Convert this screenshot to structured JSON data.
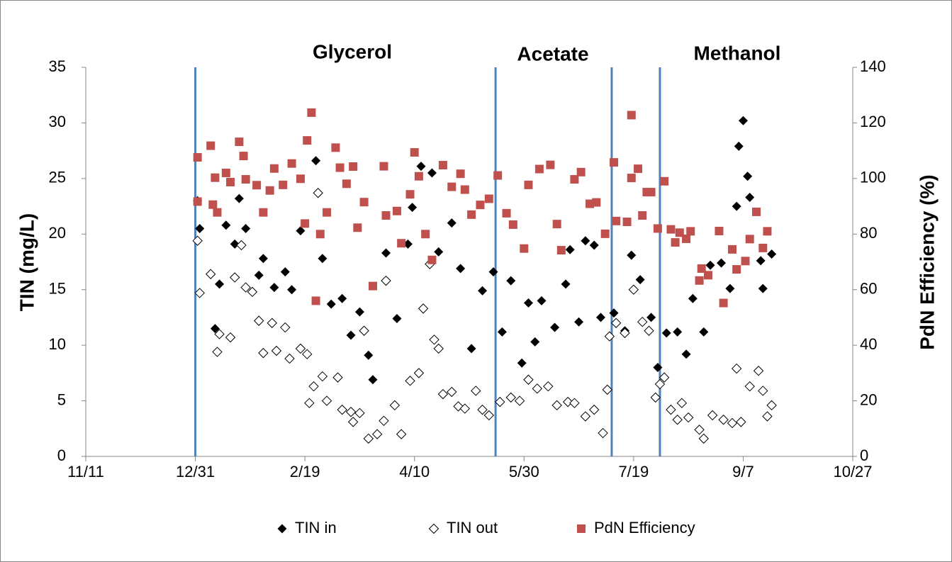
{
  "chart_data": {
    "type": "scatter",
    "y_label": "TIN (mg/L)",
    "y2_label": "PdN Efficiency (%)",
    "annotations": [
      "Glycerol",
      "Acetate",
      "Methanol"
    ],
    "phase_lines": [
      "12/31",
      "5/17",
      "7/9",
      "7/31"
    ],
    "phase_line_color": "#4f81bd",
    "xlim": [
      "11/11",
      "10/27"
    ],
    "xticks": [
      "11/11",
      "12/31",
      "2/19",
      "4/10",
      "5/30",
      "7/19",
      "9/7",
      "10/27"
    ],
    "ylim": [
      0,
      35
    ],
    "yticks": [
      0,
      5,
      10,
      15,
      20,
      25,
      30,
      35
    ],
    "y2lim": [
      0,
      140
    ],
    "y2ticks": [
      0,
      20,
      40,
      60,
      80,
      100,
      120,
      140
    ],
    "grid": false,
    "legend": "bottom",
    "series": [
      {
        "name": "TIN in",
        "color": "#000000",
        "marker": "diamond",
        "x": [
          "1/1",
          "1/2",
          "1/9",
          "1/11",
          "1/14",
          "1/18",
          "1/20",
          "1/23",
          "1/29",
          "1/31",
          "2/5",
          "2/10",
          "2/13",
          "2/17",
          "2/24",
          "2/27",
          "3/3",
          "3/8",
          "3/12",
          "3/16",
          "3/20",
          "3/22",
          "3/28",
          "4/2",
          "4/7",
          "4/9",
          "4/13",
          "4/18",
          "4/21",
          "4/27",
          "5/1",
          "5/6",
          "5/11",
          "5/16",
          "5/20",
          "5/24",
          "5/29",
          "6/1",
          "6/4",
          "6/7",
          "6/13",
          "6/18",
          "6/20",
          "6/24",
          "6/27",
          "7/1",
          "7/4",
          "7/10",
          "7/15",
          "7/18",
          "7/22",
          "7/27",
          "7/30",
          "8/3",
          "8/8",
          "8/12",
          "8/15",
          "8/20",
          "8/23",
          "8/28",
          "9/1",
          "9/4",
          "9/5",
          "9/7",
          "9/9",
          "9/10",
          "9/15",
          "9/16",
          "9/20"
        ],
        "values": [
          23,
          20.5,
          11.5,
          15.5,
          20.8,
          19.1,
          23.2,
          20.5,
          16.3,
          17.8,
          15.2,
          16.6,
          15,
          20.3,
          26.6,
          17.8,
          13.7,
          14.2,
          10.9,
          13,
          9.1,
          6.9,
          18.3,
          12.4,
          19.1,
          22.4,
          26.1,
          25.5,
          18.4,
          21,
          16.9,
          9.7,
          14.9,
          16.6,
          11.2,
          15.8,
          8.4,
          13.8,
          10.3,
          14,
          11.6,
          15.5,
          18.6,
          12.1,
          19.4,
          19,
          12.5,
          12.9,
          11.3,
          18.1,
          15.9,
          12.5,
          8,
          11.1,
          11.2,
          9.2,
          14.2,
          11.2,
          17.2,
          17.4,
          15.1,
          22.5,
          27.9,
          30.2,
          25.2,
          23.3,
          17.6,
          15.1,
          18.2
        ]
      },
      {
        "name": "TIN out",
        "color": "#000000",
        "marker": "open-diamond",
        "x": [
          "1/1",
          "1/2",
          "1/7",
          "1/10",
          "1/11",
          "1/16",
          "1/18",
          "1/21",
          "1/23",
          "1/26",
          "1/29",
          "1/31",
          "2/4",
          "2/6",
          "2/10",
          "2/12",
          "2/17",
          "2/20",
          "2/21",
          "2/23",
          "2/25",
          "2/27",
          "3/1",
          "3/6",
          "3/8",
          "3/12",
          "3/13",
          "3/16",
          "3/18",
          "3/20",
          "3/24",
          "3/27",
          "3/28",
          "4/1",
          "4/4",
          "4/8",
          "4/12",
          "4/14",
          "4/17",
          "4/19",
          "4/21",
          "4/23",
          "4/27",
          "4/30",
          "5/3",
          "5/8",
          "5/11",
          "5/14",
          "5/19",
          "5/24",
          "5/28",
          "6/1",
          "6/5",
          "6/10",
          "6/14",
          "6/19",
          "6/22",
          "6/27",
          "7/1",
          "7/5",
          "7/7",
          "7/8",
          "7/11",
          "7/15",
          "7/19",
          "7/23",
          "7/26",
          "7/29",
          "7/31",
          "8/2",
          "8/5",
          "8/8",
          "8/10",
          "8/13",
          "8/18",
          "8/20",
          "8/24",
          "8/29",
          "9/2",
          "9/4",
          "9/6",
          "9/10",
          "9/14",
          "9/16",
          "9/18",
          "9/20"
        ],
        "values": [
          19.4,
          14.7,
          16.4,
          9.4,
          11,
          10.7,
          16.1,
          19,
          15.2,
          14.8,
          12.2,
          9.3,
          12,
          9.5,
          11.6,
          8.8,
          9.7,
          9.2,
          4.8,
          6.3,
          23.7,
          7.2,
          5,
          7.1,
          4.2,
          4,
          3.1,
          3.9,
          11.3,
          1.6,
          2,
          3.2,
          15.8,
          4.6,
          2,
          6.8,
          7.5,
          13.3,
          17.3,
          10.5,
          9.7,
          5.6,
          5.8,
          4.5,
          4.3,
          5.9,
          4.2,
          3.7,
          4.9,
          5.3,
          5,
          6.9,
          6.1,
          6.3,
          4.6,
          4.9,
          4.8,
          3.6,
          4.2,
          2.1,
          6,
          10.8,
          12,
          11.1,
          15,
          12.1,
          11.3,
          5.3,
          6.5,
          7.1,
          4.2,
          3.3,
          4.8,
          3.5,
          2.4,
          1.6,
          3.7,
          3.3,
          3,
          7.9,
          3.1,
          6.3,
          7.7,
          5.9,
          3.6,
          4.6
        ]
      },
      {
        "name": "PdN Efficiency",
        "color": "#c0504d",
        "marker": "square",
        "axis": "y2",
        "x": [
          "1/1",
          "1/1",
          "1/7",
          "1/8",
          "1/9",
          "1/10",
          "1/14",
          "1/16",
          "1/20",
          "1/22",
          "1/23",
          "1/28",
          "1/31",
          "2/3",
          "2/5",
          "2/9",
          "2/13",
          "2/17",
          "2/19",
          "2/20",
          "2/22",
          "2/24",
          "2/26",
          "3/1",
          "3/5",
          "3/7",
          "3/10",
          "3/13",
          "3/15",
          "3/18",
          "3/22",
          "3/27",
          "3/28",
          "4/2",
          "4/4",
          "4/8",
          "4/10",
          "4/12",
          "4/15",
          "4/18",
          "4/23",
          "4/27",
          "5/1",
          "5/3",
          "5/6",
          "5/10",
          "5/14",
          "5/18",
          "5/22",
          "5/25",
          "5/30",
          "6/1",
          "6/6",
          "6/11",
          "6/14",
          "6/16",
          "6/22",
          "6/25",
          "6/29",
          "7/2",
          "7/6",
          "7/10",
          "7/11",
          "7/16",
          "7/18",
          "7/18",
          "7/21",
          "7/23",
          "7/25",
          "7/27",
          "7/30",
          "8/2",
          "8/5",
          "8/7",
          "8/9",
          "8/12",
          "8/14",
          "8/18",
          "8/19",
          "8/22",
          "8/27",
          "8/29",
          "9/2",
          "9/4",
          "9/8",
          "9/10",
          "9/13",
          "9/16",
          "9/18"
        ],
        "values": [
          107.6,
          91.7,
          111.8,
          90.6,
          100.3,
          87.8,
          102,
          98.7,
          113.2,
          108.1,
          99.7,
          97.6,
          87.8,
          95.7,
          103.6,
          97.7,
          105.4,
          99.9,
          83.8,
          113.7,
          123.7,
          56,
          80,
          87.8,
          111.1,
          103.9,
          98.1,
          104.3,
          82.3,
          91.5,
          61.3,
          104.4,
          86.7,
          88.3,
          76.7,
          94.3,
          109.4,
          100.8,
          80,
          70.7,
          104.8,
          97,
          101.7,
          96,
          87,
          90.5,
          92.7,
          101.1,
          87.5,
          83.4,
          74.8,
          97.7,
          103.4,
          104.9,
          83.6,
          74.2,
          99.7,
          102.3,
          90.9,
          91.4,
          80.1,
          105.8,
          84.7,
          84.4,
          100.2,
          122.8,
          103.5,
          86.7,
          95.1,
          95.1,
          82,
          99,
          81.7,
          77,
          80.5,
          78.3,
          81,
          63.3,
          67.6,
          65.2,
          81.1,
          55.2,
          74.5,
          67.3,
          70.3,
          78.2,
          88,
          75,
          81
        ]
      }
    ]
  }
}
